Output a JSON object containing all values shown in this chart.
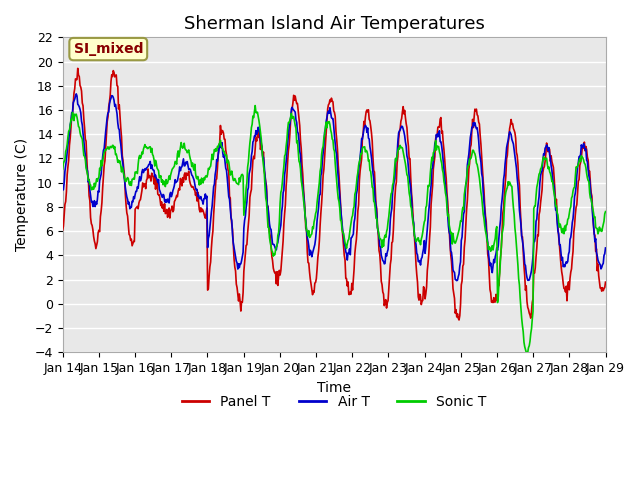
{
  "title": "Sherman Island Air Temperatures",
  "xlabel": "Time",
  "ylabel": "Temperature (C)",
  "ylim": [
    -4,
    22
  ],
  "yticks": [
    -4,
    -2,
    0,
    2,
    4,
    6,
    8,
    10,
    12,
    14,
    16,
    18,
    20,
    22
  ],
  "date_labels": [
    "Jan 14",
    "Jan 15",
    "Jan 16",
    "Jan 17",
    "Jan 18",
    "Jan 19",
    "Jan 20",
    "Jan 21",
    "Jan 22",
    "Jan 23",
    "Jan 24",
    "Jan 25",
    "Jan 26",
    "Jan 27",
    "Jan 28",
    "Jan 29"
  ],
  "legend_label_box": "SI_mixed",
  "legend_box_facecolor": "#ffffcc",
  "legend_box_edgecolor": "#999944",
  "legend_box_textcolor": "#880000",
  "line_panel_color": "#cc0000",
  "line_air_color": "#0000cc",
  "line_sonic_color": "#00cc00",
  "line_width": 1.2,
  "background_color": "#ffffff",
  "axes_facecolor": "#e8e8e8",
  "grid_color": "#ffffff",
  "title_fontsize": 13,
  "axis_fontsize": 10,
  "tick_fontsize": 9
}
